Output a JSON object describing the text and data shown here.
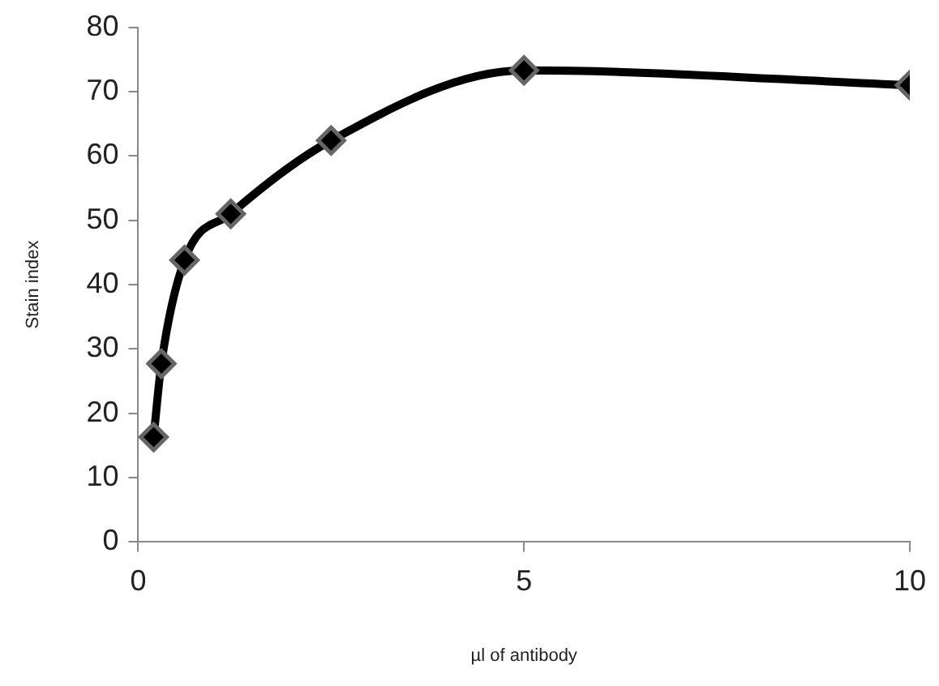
{
  "chart_data": {
    "type": "line",
    "xlabel": "µl of antibody",
    "ylabel": "Stain index",
    "x": [
      0.2,
      0.3,
      0.6,
      1.2,
      2.5,
      5,
      10
    ],
    "series": [
      {
        "color": "#000000",
        "values": [
          16.3,
          27.7,
          43.8,
          51,
          62.4,
          73.3,
          71
        ]
      }
    ],
    "xlim": [
      0,
      10
    ],
    "xticks": [
      0,
      5,
      10
    ],
    "ylim": [
      0,
      80
    ],
    "yticks": [
      0,
      10,
      20,
      30,
      40,
      50,
      60,
      70,
      80
    ],
    "grid": false,
    "legend": false,
    "marker": "diamond",
    "line_style": "solid"
  }
}
